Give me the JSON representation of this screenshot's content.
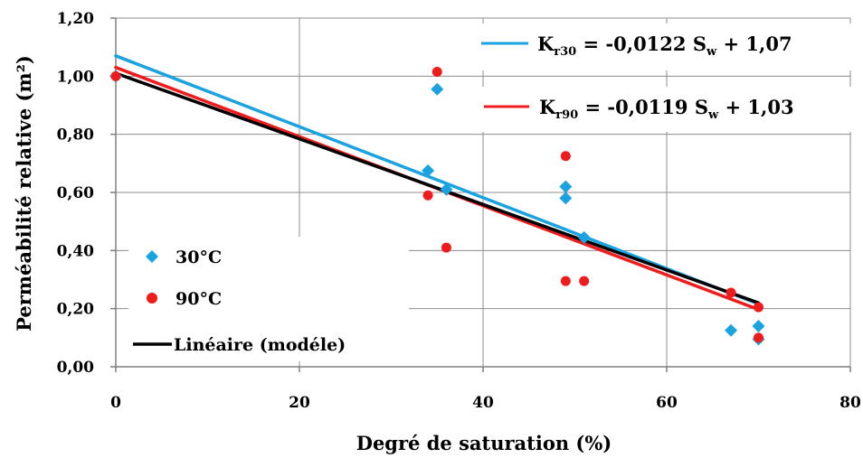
{
  "chart_data": {
    "type": "scatter",
    "xlabel": "Degré de saturation (%)",
    "ylabel": "Perméabilité relative  (m²)",
    "xlim": [
      0,
      80
    ],
    "ylim": [
      0,
      1.2
    ],
    "x_ticks": [
      "0",
      "20",
      "40",
      "60",
      "80"
    ],
    "y_ticks": [
      "0,00",
      "0,20",
      "0,40",
      "0,60",
      "0,80",
      "1,00",
      "1,20"
    ],
    "grid": true,
    "legend_position": "bottom-left",
    "series": [
      {
        "name": "30°C",
        "marker": "diamond",
        "color": "#1aa3e0",
        "points": [
          [
            0,
            1.0
          ],
          [
            35,
            0.955
          ],
          [
            34,
            0.675
          ],
          [
            36,
            0.61
          ],
          [
            49,
            0.62
          ],
          [
            49,
            0.58
          ],
          [
            51,
            0.445
          ],
          [
            67,
            0.125
          ],
          [
            70,
            0.14
          ],
          [
            70,
            0.095
          ]
        ]
      },
      {
        "name": "90°C",
        "marker": "circle",
        "color": "#ee1c1c",
        "points": [
          [
            0,
            1.0
          ],
          [
            35,
            1.015
          ],
          [
            34,
            0.59
          ],
          [
            36,
            0.41
          ],
          [
            49,
            0.725
          ],
          [
            49,
            0.295
          ],
          [
            51,
            0.295
          ],
          [
            67,
            0.255
          ],
          [
            70,
            0.205
          ],
          [
            70,
            0.1
          ]
        ]
      }
    ],
    "trendlines": [
      {
        "id": "k30",
        "color": "#1aa3e0",
        "slope": -0.0122,
        "intercept": 1.07,
        "x_range": [
          0,
          70
        ],
        "label_main": "K",
        "label_sub": "r30",
        "label_rest": " = -0,0122 S",
        "label_sub2": "w",
        "label_tail": " + 1,07"
      },
      {
        "id": "k90",
        "color": "#ee1c1c",
        "slope": -0.0119,
        "intercept": 1.03,
        "x_range": [
          0,
          70
        ],
        "label_main": "K",
        "label_sub": "r90",
        "label_rest": " = -0,0119 S",
        "label_sub2": "w",
        "label_tail": " + 1,03"
      },
      {
        "id": "model",
        "name": "Linéaire (modéle)",
        "color": "#000000",
        "points": [
          [
            0,
            1.01
          ],
          [
            70,
            0.22
          ]
        ]
      }
    ],
    "legend": [
      {
        "label": "30°C",
        "marker": "diamond",
        "color": "#1aa3e0"
      },
      {
        "label": "90°C",
        "marker": "circle",
        "color": "#ee1c1c"
      },
      {
        "label": "Linéaire (modéle)",
        "marker": "line",
        "color": "#000000"
      }
    ]
  }
}
